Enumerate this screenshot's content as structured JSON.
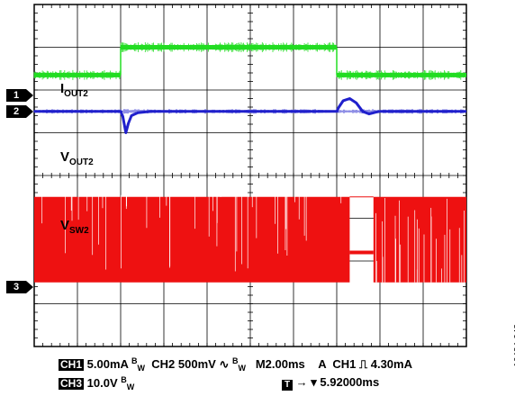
{
  "chart_data": {
    "type": "line",
    "grid": {
      "divisions_x": 10,
      "divisions_y": 8,
      "minor_ticks_per_div": 5
    },
    "traces": [
      {
        "name": "IOUT2",
        "label_main": "I",
        "label_sub": "OUT2",
        "channel": "CH2?",
        "color": "#22dd22",
        "x_div": [
          0,
          2,
          2,
          7,
          7,
          10
        ],
        "y_div": [
          1.65,
          1.65,
          1.0,
          1.0,
          1.65,
          1.65
        ]
      },
      {
        "name": "VOUT2",
        "label_main": "V",
        "label_sub": "OUT2",
        "color": "#2020cc",
        "baseline_div": 2.5,
        "x_div": [
          0,
          2.0,
          2.05,
          2.12,
          2.18,
          2.25,
          2.4,
          2.7,
          7.0,
          7.05,
          7.15,
          7.3,
          7.45,
          7.6,
          7.75,
          7.9,
          8.0,
          10
        ],
        "y_div": [
          2.5,
          2.5,
          2.62,
          3.0,
          2.78,
          2.6,
          2.53,
          2.5,
          2.5,
          2.4,
          2.25,
          2.2,
          2.3,
          2.5,
          2.56,
          2.52,
          2.5,
          2.5
        ]
      },
      {
        "name": "VSW2",
        "label_main": "V",
        "label_sub": "SW2",
        "color": "#ee1111",
        "top_div": 4.5,
        "bottom_div": 6.5,
        "gaps": [
          {
            "from_div": 7.3,
            "to_div": 7.85,
            "level_div": 5.8
          }
        ]
      }
    ],
    "markers": [
      {
        "label": "1",
        "y_div": 2.12
      },
      {
        "label": "2",
        "y_div": 2.5
      },
      {
        "label": "3",
        "y_div": 6.62
      }
    ],
    "status": {
      "ch1_tag": "CH1",
      "ch1_scale": "5.00mA",
      "ch2_label": "CH2",
      "ch2_scale": "500mV",
      "coupling_symbol": "∿",
      "bw_symbol": "B",
      "bw_sub": "W",
      "timebase": "M2.00ms",
      "trigger_mode": "A",
      "trigger_source": "CH1",
      "trigger_edge_symbol": "⎍",
      "trigger_level": "4.30mA",
      "ch3_tag": "CH3",
      "ch3_scale": "10.0V",
      "trigger_tag": "T",
      "trigger_pos_symbol": "→ ▾",
      "trigger_position": "5.92000ms"
    },
    "figure_id": "16434-043"
  }
}
